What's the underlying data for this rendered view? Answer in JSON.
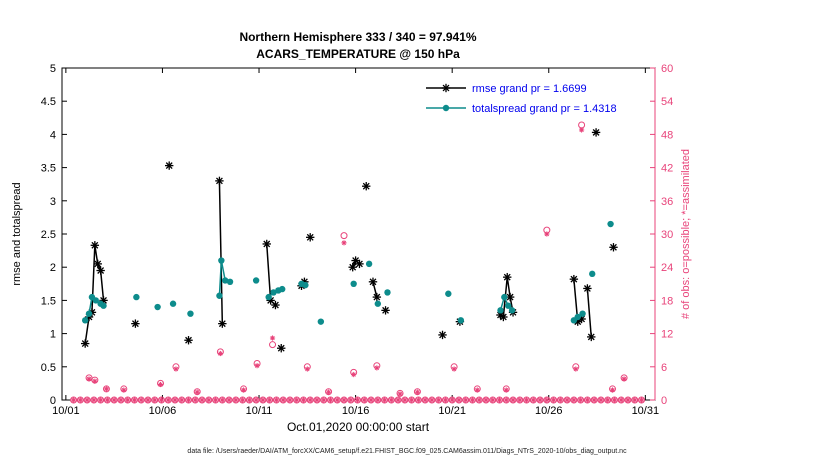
{
  "title": {
    "line1": "Northern Hemisphere 333 / 340 = 97.941%",
    "line2": "ACARS_TEMPERATURE @ 150 hPa"
  },
  "caption": "data file: /Users/raeder/DAI/ATM_forcXX/CAM6_setup/f.e21.FHIST_BGC.f09_025.CAM6assim.011/Diags_NTrS_2020-10/obs_diag_output.nc",
  "colors": {
    "rmse": "#000000",
    "totalspread": "#0d8c8c",
    "obs": "#e8437a",
    "legend_text": "#0000ee",
    "axis": "#000000"
  },
  "legend": {
    "items": [
      {
        "label": "rmse grand pr = 1.6699",
        "color": "#000000",
        "marker": "asterisk"
      },
      {
        "label": "totalspread grand pr = 1.4318",
        "color": "#0d8c8c",
        "marker": "dot"
      }
    ]
  },
  "chart_data": {
    "type": "line",
    "x_axis": {
      "label": "Oct.01,2020 00:00:00 start",
      "lim": [
        0.8,
        31.5
      ],
      "ticks": [
        {
          "day": 1,
          "label": "10/01"
        },
        {
          "day": 6,
          "label": "10/06"
        },
        {
          "day": 11,
          "label": "10/11"
        },
        {
          "day": 16,
          "label": "10/16"
        },
        {
          "day": 21,
          "label": "10/21"
        },
        {
          "day": 26,
          "label": "10/26"
        },
        {
          "day": 31,
          "label": "10/31"
        }
      ]
    },
    "y_left": {
      "label": "rmse and totalspread",
      "lim": [
        0,
        5
      ],
      "ticks": [
        0,
        0.5,
        1,
        1.5,
        2,
        2.5,
        3,
        3.5,
        4,
        4.5,
        5
      ]
    },
    "y_right": {
      "label": "# of obs: o=possible; *=assimilated",
      "lim": [
        0,
        60
      ],
      "ticks": [
        0,
        6,
        12,
        18,
        24,
        30,
        36,
        42,
        48,
        54,
        60
      ]
    },
    "series": [
      {
        "name": "rmse",
        "axis": "left",
        "color": "#000000",
        "marker": "asterisk",
        "line": true,
        "grand_pr": 1.6699,
        "segments": [
          [
            [
              2.0,
              0.85
            ],
            [
              2.2,
              1.25
            ],
            [
              2.35,
              1.32
            ],
            [
              2.5,
              2.33
            ],
            [
              2.65,
              2.05
            ],
            [
              2.8,
              1.95
            ],
            [
              2.95,
              1.5
            ]
          ],
          [
            [
              4.6,
              1.15
            ]
          ],
          [
            [
              6.35,
              3.53
            ]
          ],
          [
            [
              7.35,
              0.9
            ]
          ],
          [
            [
              8.95,
              3.3
            ],
            [
              9.1,
              1.15
            ]
          ],
          [
            [
              11.4,
              2.35
            ],
            [
              11.6,
              1.5
            ],
            [
              11.85,
              1.43
            ]
          ],
          [
            [
              12.15,
              0.78
            ]
          ],
          [
            [
              13.2,
              1.72
            ],
            [
              13.35,
              1.78
            ]
          ],
          [
            [
              13.65,
              2.45
            ]
          ],
          [
            [
              15.85,
              2.0
            ],
            [
              16.0,
              2.1
            ],
            [
              16.2,
              2.05
            ]
          ],
          [
            [
              16.55,
              3.22
            ]
          ],
          [
            [
              16.9,
              1.78
            ],
            [
              17.1,
              1.55
            ]
          ],
          [
            [
              17.55,
              1.35
            ]
          ],
          [
            [
              20.5,
              0.98
            ]
          ],
          [
            [
              21.4,
              1.18
            ]
          ],
          [
            [
              23.5,
              1.28
            ],
            [
              23.65,
              1.25
            ],
            [
              23.85,
              1.85
            ],
            [
              24.0,
              1.55
            ],
            [
              24.15,
              1.32
            ]
          ],
          [
            [
              27.3,
              1.82
            ],
            [
              27.5,
              1.18
            ],
            [
              27.7,
              1.22
            ]
          ],
          [
            [
              28.0,
              1.68
            ],
            [
              28.2,
              0.95
            ]
          ],
          [
            [
              28.45,
              4.03
            ]
          ],
          [
            [
              29.35,
              2.3
            ]
          ]
        ]
      },
      {
        "name": "totalspread",
        "axis": "left",
        "color": "#0d8c8c",
        "marker": "dot",
        "line": true,
        "grand_pr": 1.4318,
        "segments": [
          [
            [
              2.0,
              1.2
            ],
            [
              2.2,
              1.3
            ],
            [
              2.35,
              1.55
            ],
            [
              2.55,
              1.5
            ],
            [
              2.8,
              1.45
            ],
            [
              2.95,
              1.42
            ]
          ],
          [
            [
              4.65,
              1.55
            ]
          ],
          [
            [
              5.75,
              1.4
            ]
          ],
          [
            [
              6.55,
              1.45
            ]
          ],
          [
            [
              7.45,
              1.3
            ]
          ],
          [
            [
              8.95,
              1.57
            ],
            [
              9.05,
              2.1
            ],
            [
              9.25,
              1.8
            ],
            [
              9.5,
              1.78
            ]
          ],
          [
            [
              10.85,
              1.8
            ]
          ],
          [
            [
              11.5,
              1.55
            ],
            [
              11.75,
              1.62
            ],
            [
              12.0,
              1.65
            ],
            [
              12.2,
              1.67
            ]
          ],
          [
            [
              13.2,
              1.75
            ],
            [
              13.4,
              1.73
            ]
          ],
          [
            [
              14.2,
              1.18
            ]
          ],
          [
            [
              15.9,
              1.75
            ]
          ],
          [
            [
              16.7,
              2.05
            ]
          ],
          [
            [
              17.15,
              1.45
            ]
          ],
          [
            [
              17.65,
              1.62
            ]
          ],
          [
            [
              20.8,
              1.6
            ]
          ],
          [
            [
              21.45,
              1.2
            ]
          ],
          [
            [
              23.5,
              1.35
            ],
            [
              23.7,
              1.55
            ],
            [
              23.9,
              1.42
            ],
            [
              24.1,
              1.35
            ]
          ],
          [
            [
              27.3,
              1.2
            ],
            [
              27.5,
              1.25
            ],
            [
              27.75,
              1.3
            ]
          ],
          [
            [
              28.25,
              1.9
            ]
          ],
          [
            [
              29.2,
              2.65
            ]
          ]
        ]
      },
      {
        "name": "obs_possible",
        "axis": "right",
        "color": "#e8437a",
        "marker": "circle",
        "line": false,
        "baseline": {
          "x_start": 1.4,
          "x_end": 31.1,
          "step": 0.35,
          "value": 0
        },
        "points": [
          [
            2.2,
            4
          ],
          [
            2.5,
            3.6
          ],
          [
            3.1,
            2
          ],
          [
            4.0,
            2
          ],
          [
            5.9,
            3
          ],
          [
            6.7,
            6
          ],
          [
            7.8,
            1.5
          ],
          [
            9.0,
            8.7
          ],
          [
            10.2,
            2
          ],
          [
            10.9,
            6.6
          ],
          [
            11.7,
            10
          ],
          [
            13.5,
            6
          ],
          [
            14.6,
            1.5
          ],
          [
            15.4,
            29.7
          ],
          [
            15.9,
            5
          ],
          [
            17.1,
            6.2
          ],
          [
            18.3,
            1.2
          ],
          [
            19.2,
            1.5
          ],
          [
            21.1,
            6
          ],
          [
            22.3,
            2
          ],
          [
            23.8,
            2
          ],
          [
            25.9,
            30.7
          ],
          [
            27.4,
            6
          ],
          [
            27.7,
            49.7
          ],
          [
            29.3,
            2
          ],
          [
            29.9,
            4
          ]
        ]
      },
      {
        "name": "obs_assimilated",
        "axis": "right",
        "color": "#e8437a",
        "marker": "asterisk_small",
        "line": false,
        "baseline": {
          "x_start": 1.4,
          "x_end": 31.1,
          "step": 0.35,
          "value": 0
        },
        "points": [
          [
            2.2,
            3.8
          ],
          [
            2.5,
            3.4
          ],
          [
            3.1,
            2
          ],
          [
            4.0,
            1.8
          ],
          [
            5.9,
            2.8
          ],
          [
            6.7,
            5.6
          ],
          [
            7.8,
            1.4
          ],
          [
            9.0,
            8.4
          ],
          [
            10.2,
            1.8
          ],
          [
            10.9,
            6.2
          ],
          [
            11.7,
            11.2
          ],
          [
            13.5,
            5.6
          ],
          [
            14.6,
            1.4
          ],
          [
            15.4,
            28.4
          ],
          [
            15.9,
            4.6
          ],
          [
            17.1,
            5.8
          ],
          [
            18.3,
            1.1
          ],
          [
            19.2,
            1.4
          ],
          [
            21.1,
            5.6
          ],
          [
            22.3,
            1.8
          ],
          [
            23.8,
            1.8
          ],
          [
            25.9,
            30.0
          ],
          [
            27.4,
            5.6
          ],
          [
            27.7,
            48.8
          ],
          [
            29.3,
            1.8
          ],
          [
            29.9,
            3.8
          ]
        ]
      }
    ]
  }
}
